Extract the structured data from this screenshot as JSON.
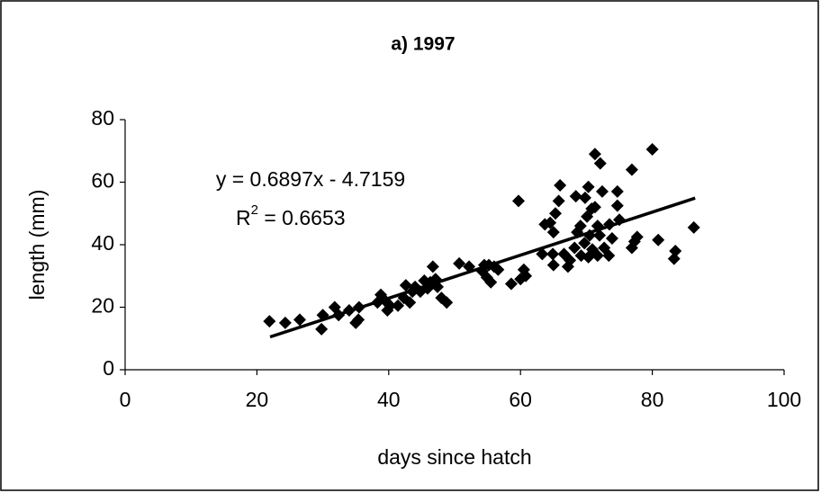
{
  "chart_data": {
    "type": "scatter",
    "title": "a) 1997",
    "x_label": "days since hatch",
    "y_label": "length (mm)",
    "equation_label": "y = 0.6897x - 4.7159",
    "r_squared_label": [
      "R",
      "2",
      " = 0.6653"
    ],
    "color": "#000000",
    "x": [
      21.9,
      24.3,
      26.5,
      29.8,
      30,
      31.8,
      32.4,
      34,
      35,
      35.4,
      35.5,
      38.3,
      38.8,
      39.5,
      39.8,
      40.2,
      41.4,
      42.3,
      42.6,
      43.2,
      43.6,
      44,
      44.8,
      45.4,
      45.9,
      46.3,
      46.7,
      47.1,
      47.4,
      48,
      48.8,
      50.7,
      52.2,
      54.2,
      54.5,
      54.9,
      55.2,
      55.5,
      56,
      56.6,
      58.6,
      59.7,
      60,
      60.5,
      60.8,
      63.3,
      63.7,
      64.5,
      64.9,
      65,
      65,
      65.3,
      65.8,
      66,
      66.6,
      67.2,
      67.5,
      68.2,
      68.4,
      68.6,
      69.1,
      69.2,
      69.7,
      69.8,
      70.1,
      70.3,
      70.3,
      70.5,
      70.8,
      70.9,
      71.3,
      71.3,
      71.7,
      71.7,
      72,
      72.1,
      72.4,
      72.7,
      73.4,
      73.5,
      73.9,
      74.7,
      74.7,
      75,
      76.9,
      76.9,
      77.3,
      77.7,
      80,
      80.9,
      83.3,
      83.5,
      86.3
    ],
    "values": [
      15.5,
      15,
      16,
      13,
      17.5,
      20,
      17.5,
      19,
      15,
      16,
      20,
      21.5,
      24,
      22,
      19,
      20.5,
      20.5,
      23,
      27,
      21.5,
      25,
      26.5,
      25,
      28.5,
      26,
      28,
      33,
      29,
      26.5,
      23,
      21.5,
      34,
      33,
      31.5,
      33.5,
      29.5,
      33.5,
      28,
      33,
      32,
      27.5,
      54,
      29,
      32,
      30,
      37,
      46.5,
      47,
      37,
      33.5,
      44,
      50,
      54,
      59,
      37,
      33,
      35,
      39,
      55.5,
      44,
      46,
      36.5,
      40.5,
      55,
      49,
      36,
      58.5,
      43,
      51.5,
      38.5,
      69,
      52,
      36.5,
      46,
      43,
      66,
      57,
      39,
      36.5,
      46.5,
      42,
      57,
      52.5,
      48,
      64,
      39,
      41,
      42.5,
      70.5,
      41.5,
      35.5,
      38,
      45.5
    ],
    "trendline": {
      "x": [
        22,
        86.5
      ],
      "y": [
        10.5,
        54.9
      ]
    },
    "xlim": [
      0,
      100
    ],
    "xticks": [
      0,
      20,
      40,
      60,
      80,
      100
    ],
    "ylim": [
      0,
      80
    ],
    "yticks": [
      0,
      20,
      40,
      60,
      80
    ]
  }
}
